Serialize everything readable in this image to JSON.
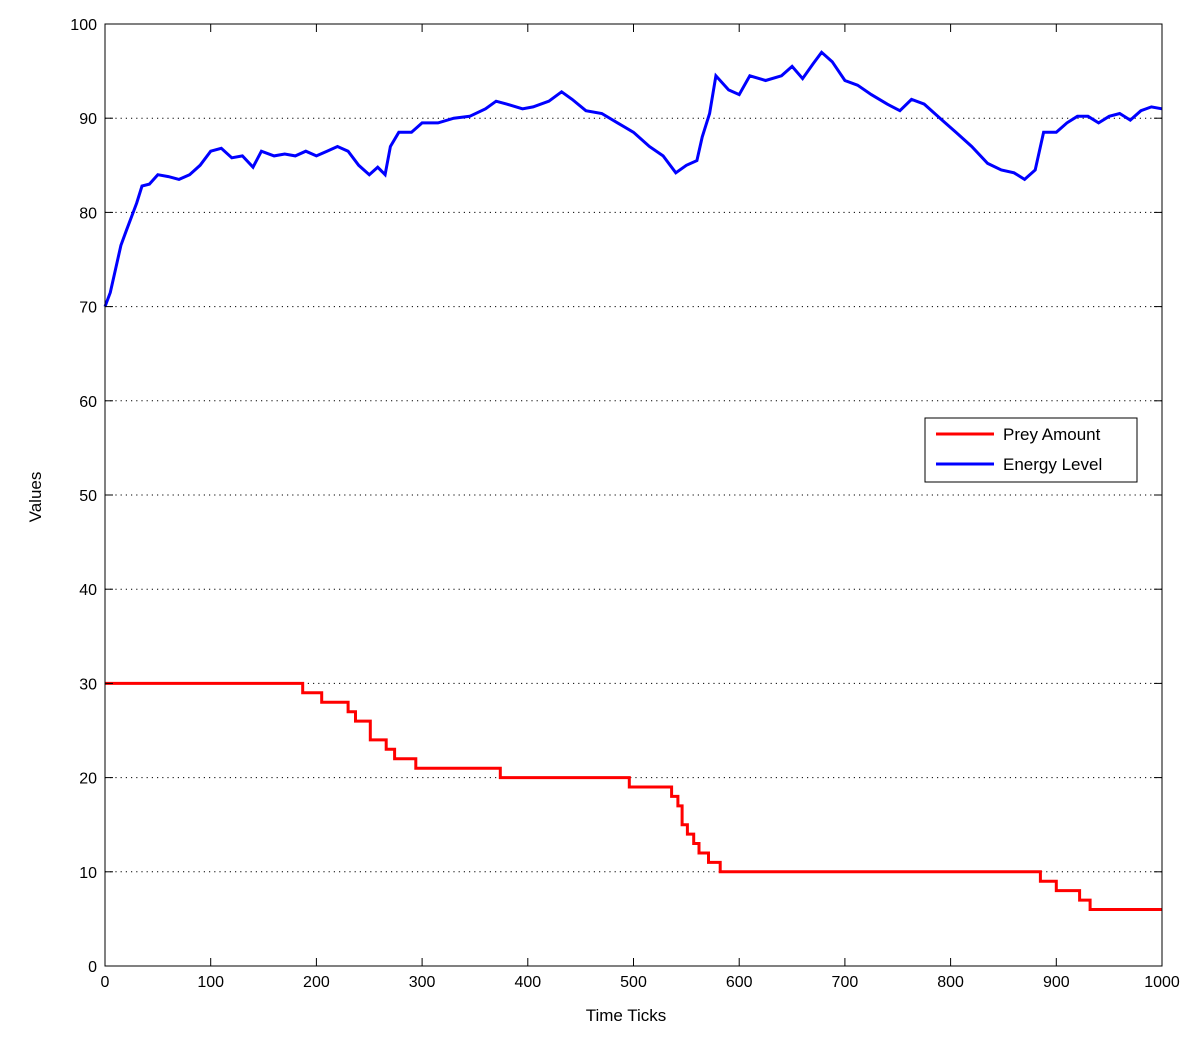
{
  "chart_data": {
    "type": "line",
    "title": "",
    "xlabel": "Time Ticks",
    "ylabel": "Values",
    "xlim": [
      0,
      1000
    ],
    "ylim": [
      0,
      100
    ],
    "x_ticks": [
      0,
      100,
      200,
      300,
      400,
      500,
      600,
      700,
      800,
      900,
      1000
    ],
    "y_ticks": [
      0,
      10,
      20,
      30,
      40,
      50,
      60,
      70,
      80,
      90,
      100
    ],
    "grid": "horizontal dotted",
    "legend_position": "right",
    "series": [
      {
        "name": "Prey Amount",
        "color": "#ff0000",
        "step": true,
        "points": [
          [
            0,
            30
          ],
          [
            187,
            30
          ],
          [
            187,
            29
          ],
          [
            205,
            29
          ],
          [
            205,
            28
          ],
          [
            230,
            28
          ],
          [
            230,
            27
          ],
          [
            237,
            27
          ],
          [
            237,
            26
          ],
          [
            251,
            26
          ],
          [
            251,
            24
          ],
          [
            266,
            24
          ],
          [
            266,
            23
          ],
          [
            274,
            23
          ],
          [
            274,
            22
          ],
          [
            294,
            22
          ],
          [
            294,
            21
          ],
          [
            374,
            21
          ],
          [
            374,
            20
          ],
          [
            496,
            20
          ],
          [
            496,
            19
          ],
          [
            536,
            19
          ],
          [
            536,
            18
          ],
          [
            542,
            18
          ],
          [
            542,
            17
          ],
          [
            546,
            17
          ],
          [
            546,
            15
          ],
          [
            551,
            15
          ],
          [
            551,
            14
          ],
          [
            557,
            14
          ],
          [
            557,
            13
          ],
          [
            562,
            13
          ],
          [
            562,
            12
          ],
          [
            571,
            12
          ],
          [
            571,
            11
          ],
          [
            582,
            11
          ],
          [
            582,
            10
          ],
          [
            885,
            10
          ],
          [
            885,
            9
          ],
          [
            900,
            9
          ],
          [
            900,
            8
          ],
          [
            922,
            8
          ],
          [
            922,
            7
          ],
          [
            932,
            7
          ],
          [
            932,
            6
          ],
          [
            1000,
            6
          ]
        ]
      },
      {
        "name": "Energy Level",
        "color": "#0000ff",
        "step": false,
        "points": [
          [
            0,
            70
          ],
          [
            5,
            71.5
          ],
          [
            10,
            74
          ],
          [
            15,
            76.5
          ],
          [
            20,
            78
          ],
          [
            25,
            79.5
          ],
          [
            30,
            81
          ],
          [
            35,
            82.8
          ],
          [
            42,
            83
          ],
          [
            50,
            84
          ],
          [
            60,
            83.8
          ],
          [
            70,
            83.5
          ],
          [
            80,
            84
          ],
          [
            90,
            85
          ],
          [
            100,
            86.5
          ],
          [
            110,
            86.8
          ],
          [
            120,
            85.8
          ],
          [
            130,
            86
          ],
          [
            140,
            84.8
          ],
          [
            148,
            86.5
          ],
          [
            160,
            86
          ],
          [
            170,
            86.2
          ],
          [
            180,
            86
          ],
          [
            190,
            86.5
          ],
          [
            200,
            86
          ],
          [
            210,
            86.5
          ],
          [
            220,
            87
          ],
          [
            230,
            86.5
          ],
          [
            240,
            85
          ],
          [
            250,
            84
          ],
          [
            258,
            84.8
          ],
          [
            265,
            84
          ],
          [
            270,
            87
          ],
          [
            278,
            88.5
          ],
          [
            290,
            88.5
          ],
          [
            300,
            89.5
          ],
          [
            315,
            89.5
          ],
          [
            330,
            90
          ],
          [
            345,
            90.2
          ],
          [
            360,
            91
          ],
          [
            370,
            91.8
          ],
          [
            380,
            91.5
          ],
          [
            395,
            91
          ],
          [
            405,
            91.2
          ],
          [
            420,
            91.8
          ],
          [
            432,
            92.8
          ],
          [
            442,
            92
          ],
          [
            455,
            90.8
          ],
          [
            470,
            90.5
          ],
          [
            485,
            89.5
          ],
          [
            500,
            88.5
          ],
          [
            515,
            87
          ],
          [
            528,
            86
          ],
          [
            540,
            84.2
          ],
          [
            550,
            85
          ],
          [
            560,
            85.5
          ],
          [
            565,
            88
          ],
          [
            572,
            90.5
          ],
          [
            578,
            94.5
          ],
          [
            590,
            93
          ],
          [
            600,
            92.5
          ],
          [
            610,
            94.5
          ],
          [
            625,
            94
          ],
          [
            640,
            94.5
          ],
          [
            650,
            95.5
          ],
          [
            660,
            94.2
          ],
          [
            670,
            95.8
          ],
          [
            678,
            97
          ],
          [
            688,
            96
          ],
          [
            700,
            94
          ],
          [
            712,
            93.5
          ],
          [
            725,
            92.5
          ],
          [
            740,
            91.5
          ],
          [
            752,
            90.8
          ],
          [
            763,
            92
          ],
          [
            775,
            91.5
          ],
          [
            790,
            90
          ],
          [
            805,
            88.5
          ],
          [
            820,
            87
          ],
          [
            835,
            85.2
          ],
          [
            848,
            84.5
          ],
          [
            860,
            84.2
          ],
          [
            870,
            83.5
          ],
          [
            880,
            84.5
          ],
          [
            888,
            88.5
          ],
          [
            900,
            88.5
          ],
          [
            910,
            89.5
          ],
          [
            920,
            90.2
          ],
          [
            930,
            90.2
          ],
          [
            940,
            89.5
          ],
          [
            950,
            90.2
          ],
          [
            960,
            90.5
          ],
          [
            970,
            89.8
          ],
          [
            980,
            90.8
          ],
          [
            990,
            91.2
          ],
          [
            1000,
            91
          ]
        ]
      }
    ]
  }
}
